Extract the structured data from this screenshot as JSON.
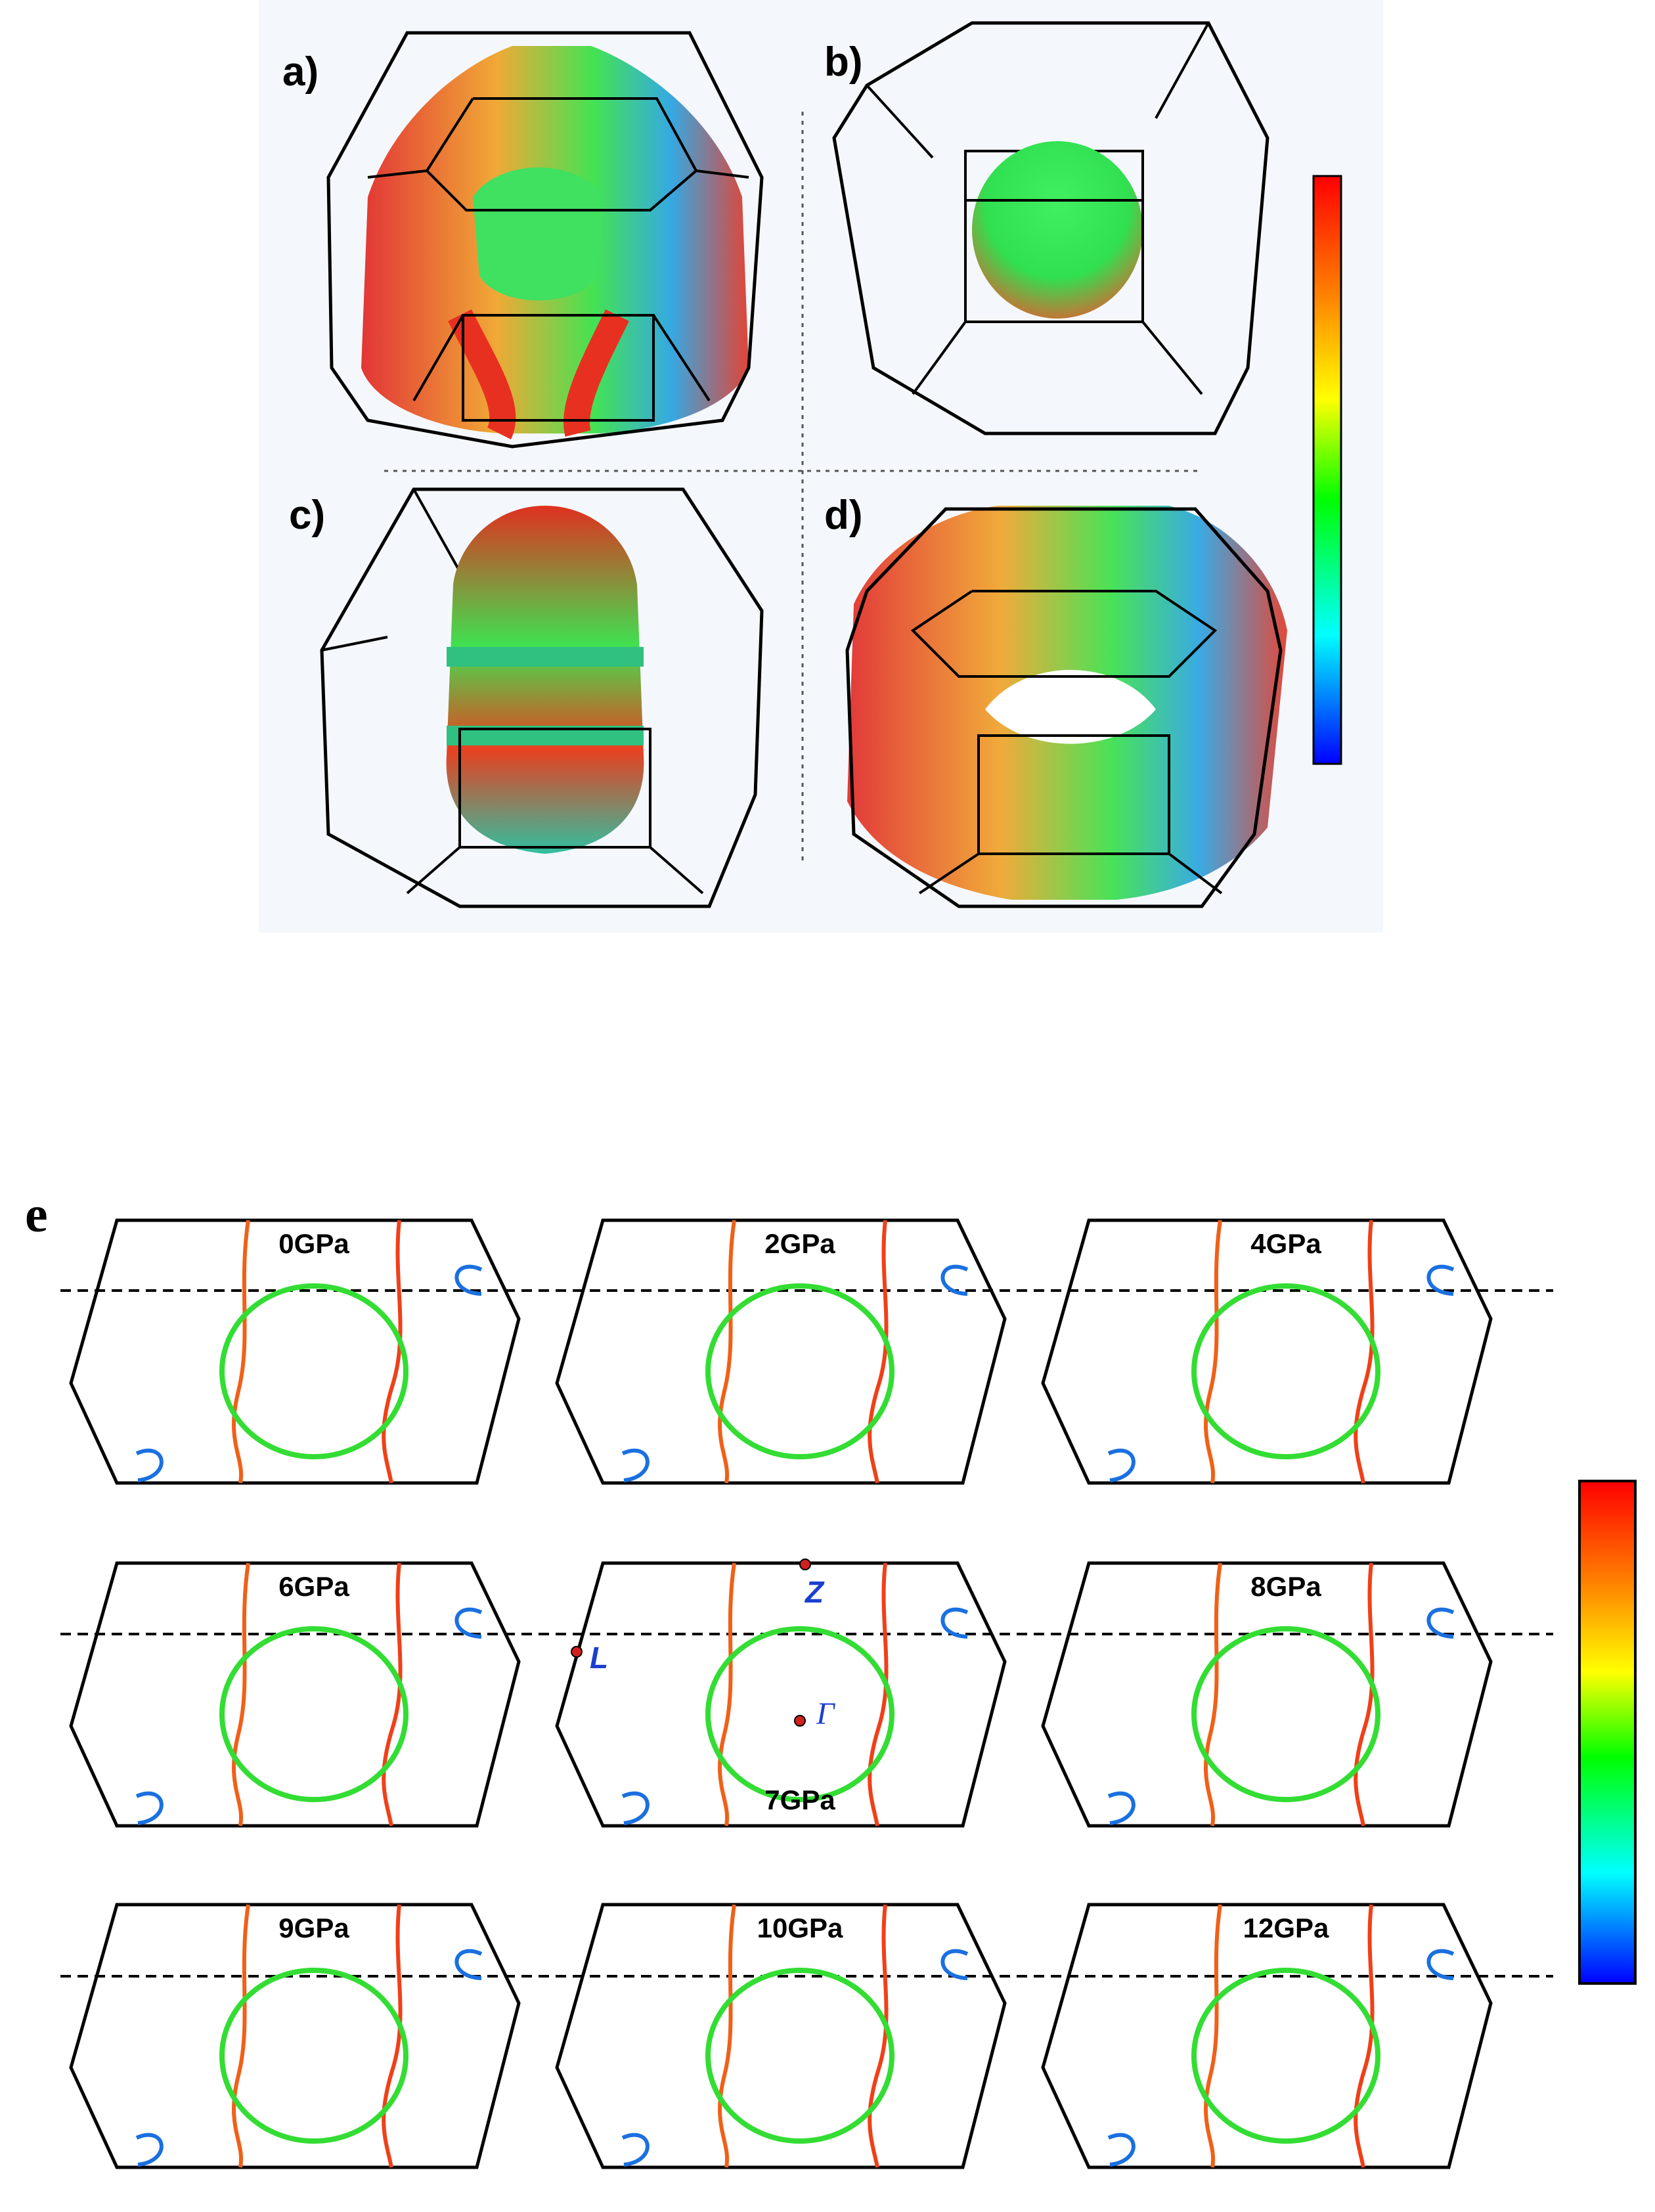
{
  "top_panel": {
    "panel_labels": [
      "a)",
      "b)",
      "c)",
      "d)"
    ]
  },
  "bottom_panel": {
    "label": "e",
    "pressures": [
      "0GPa",
      "2GPa",
      "4GPa",
      "6GPa",
      "7GPa",
      "8GPa",
      "9GPa",
      "10GPa",
      "12GPa"
    ],
    "point_labels": {
      "z": "Z",
      "l": "L",
      "gamma": "Γ"
    }
  },
  "colorbar": {
    "colors": [
      "#0000ff",
      "#00ffff",
      "#00ff00",
      "#ffff00",
      "#ff8000",
      "#ff0000"
    ]
  }
}
